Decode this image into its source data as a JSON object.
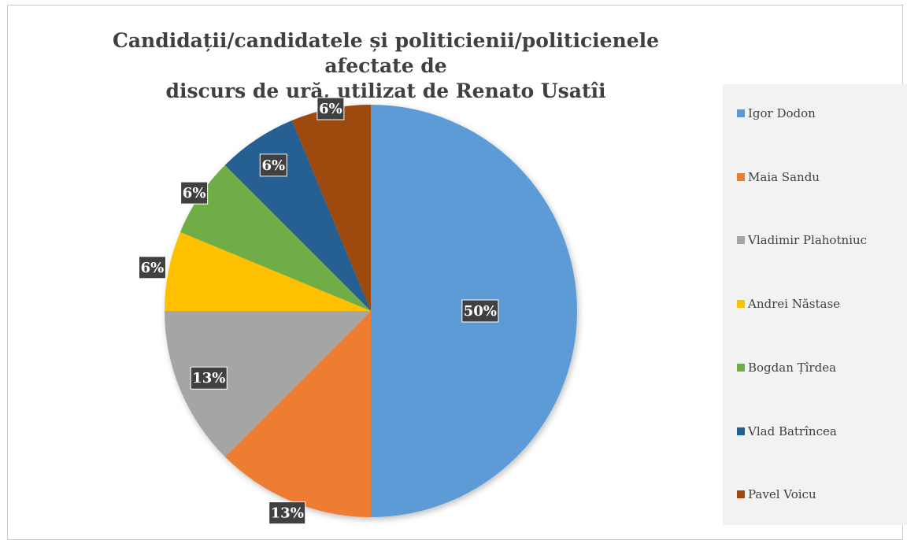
{
  "chart_data": {
    "type": "pie",
    "title": "Candidații/candidatele și politicienii/politicienele afectate de discurs de ură, utilizat de Renato Usatîi",
    "categories": [
      "Igor Dodon",
      "Maia Sandu",
      "Vladimir Plahotniuc",
      "Andrei Năstase",
      "Bogdan Țîrdea",
      "Vlad Batrîncea",
      "Pavel Voicu"
    ],
    "values": [
      50,
      12.5,
      12.5,
      6.25,
      6.25,
      6.25,
      6.25
    ],
    "labels": [
      "50%",
      "13%",
      "13%",
      "6%",
      "6%",
      "6%",
      "6%"
    ],
    "colors": [
      "#5b9bd5",
      "#ed7d31",
      "#a5a5a5",
      "#ffc000",
      "#70ad47",
      "#255e91",
      "#9e480e"
    ],
    "legend_position": "right",
    "title_lines": [
      "Candidații/candidatele și politicienii/politicienele afectate de",
      "discurs de ură, utilizat de Renato Usatîi"
    ]
  }
}
